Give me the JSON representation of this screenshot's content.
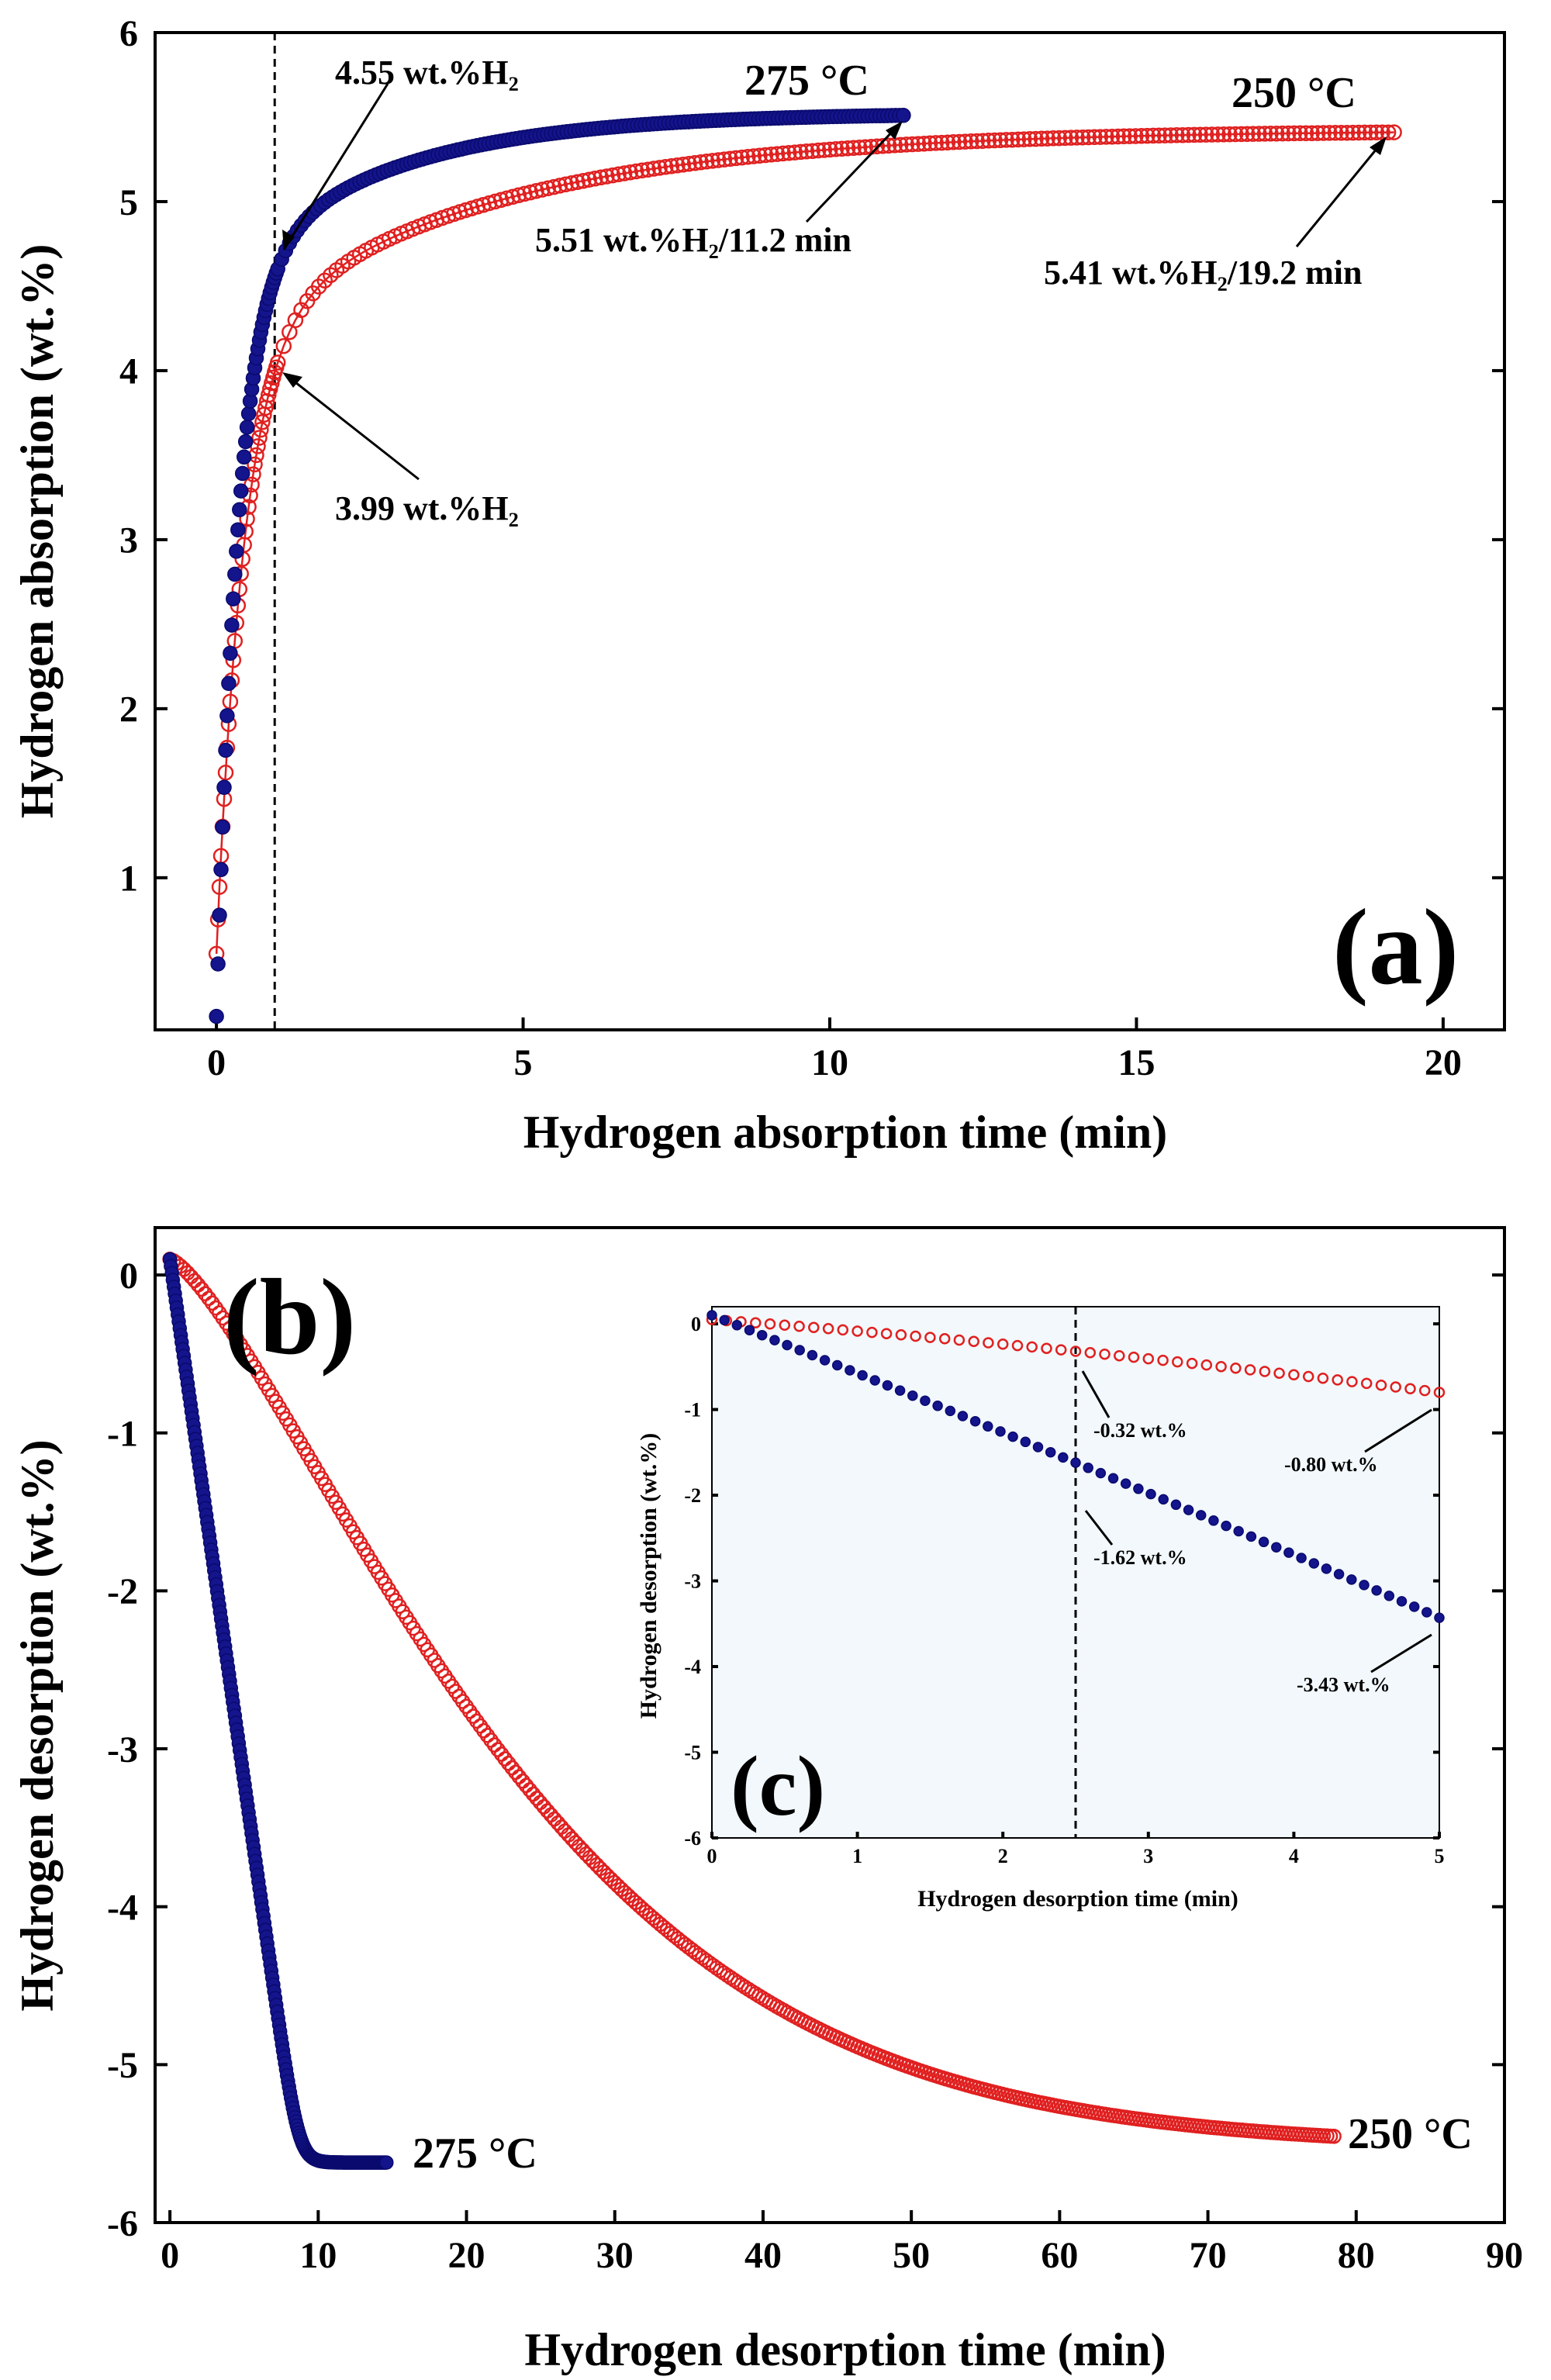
{
  "chart_data": [
    {
      "id": "a",
      "type": "scatter",
      "panel_label": "(a)",
      "xlabel": "Hydrogen absorption time (min)",
      "ylabel": "Hydrogen absorption (wt.%)",
      "xlim": [
        -1,
        21
      ],
      "ylim": [
        0.1,
        6
      ],
      "xticks": [
        0,
        5,
        10,
        15,
        20
      ],
      "yticks": [
        1,
        2,
        3,
        4,
        5,
        6
      ],
      "reference_line_x": 0.95,
      "series": [
        {
          "name": "275 °C",
          "color": "#14148c",
          "marker": "filled-circle",
          "t_end": 11.2,
          "y0": 0.18,
          "y_end": 5.51,
          "y_at_ref": 4.55
        },
        {
          "name": "250 °C",
          "color": "#e02020",
          "marker": "open-circle",
          "t_end": 19.2,
          "y0": 0.55,
          "y_end": 5.41,
          "y_at_ref": 3.99
        }
      ],
      "annotations": {
        "temp_275": "275 °C",
        "temp_250": "250 °C",
        "blue_ref": "4.55 wt.%H₂",
        "red_ref": "3.99 wt.%H₂",
        "blue_end": "5.51 wt.%H₂/11.2 min",
        "red_end": "5.41 wt.%H₂/19.2 min"
      }
    },
    {
      "id": "b",
      "type": "scatter",
      "panel_label": "(b)",
      "xlabel": "Hydrogen desorption time (min)",
      "ylabel": "Hydrogen desorption (wt.%)",
      "xlim": [
        -1,
        90
      ],
      "ylim": [
        -6,
        0.3
      ],
      "xticks": [
        0,
        10,
        20,
        30,
        40,
        50,
        60,
        70,
        80,
        90
      ],
      "yticks": [
        0,
        -1,
        -2,
        -3,
        -4,
        -5,
        -6
      ],
      "series": [
        {
          "name": "275 °C",
          "color": "#14148c",
          "marker": "filled-circle",
          "t_end": 14.6,
          "y_end": -5.62
        },
        {
          "name": "250 °C",
          "color": "#e02020",
          "marker": "open-circle",
          "t_end": 78.5,
          "y_end": -5.52
        }
      ],
      "annotations": {
        "temp_275": "275 °C",
        "temp_250": "250 °C"
      }
    },
    {
      "id": "c",
      "type": "scatter",
      "panel_label": "(c)",
      "xlabel": "Hydrogen desorption time (min)",
      "ylabel": "Hydrogen desorption (wt.%)",
      "xlim": [
        0,
        5
      ],
      "ylim": [
        -6,
        0.2
      ],
      "xticks": [
        0,
        1,
        2,
        3,
        4,
        5
      ],
      "yticks": [
        0,
        -1,
        -2,
        -3,
        -4,
        -5,
        -6
      ],
      "reference_line_x": 2.5,
      "series": [
        {
          "name": "275 °C",
          "color": "#14148c",
          "marker": "filled-circle",
          "y_at_ref": -1.62,
          "y_end": -3.43
        },
        {
          "name": "250 °C",
          "color": "#e02020",
          "marker": "open-circle",
          "y_at_ref": -0.32,
          "y_end": -0.8
        }
      ],
      "annotations": {
        "red_ref": "-0.32 wt.%",
        "red_end": "-0.80 wt.%",
        "blue_ref": "-1.62 wt.%",
        "blue_end": "-3.43 wt.%"
      }
    }
  ]
}
